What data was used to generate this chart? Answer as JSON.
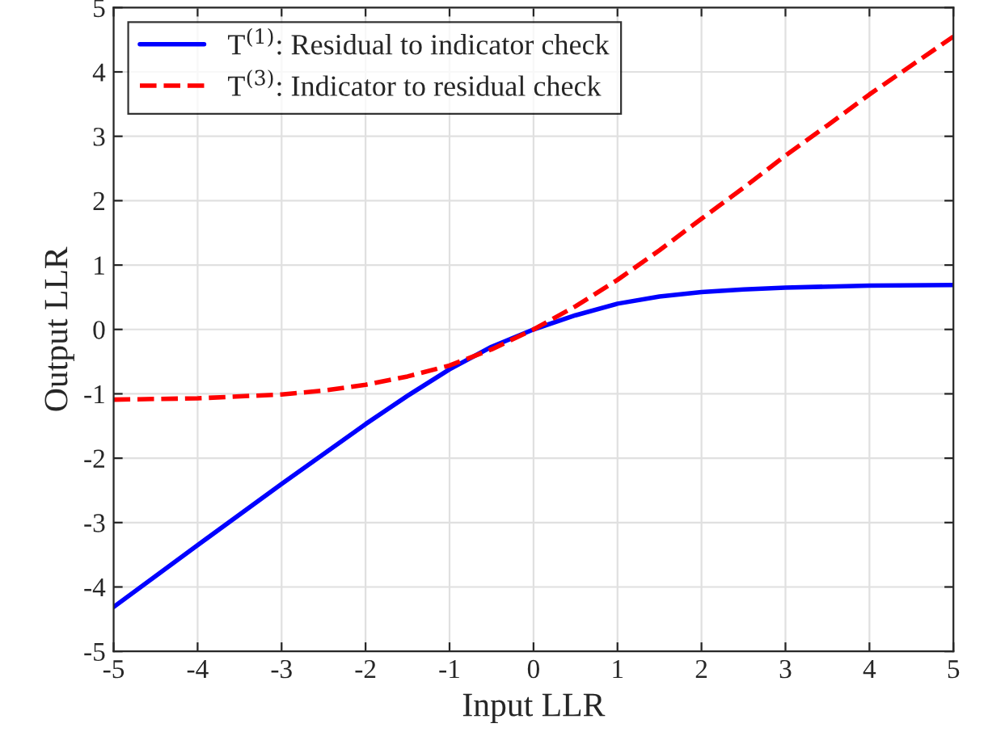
{
  "chart_data": {
    "type": "line",
    "xlabel": "Input LLR",
    "ylabel": "Output LLR",
    "series": [
      {
        "name": "T$^{(1)}$: Residual to indicator check",
        "color": "#0000ff",
        "line_style": "solid",
        "x": [
          -5,
          -4,
          -3,
          -2,
          -1.5,
          -1,
          -0.5,
          0,
          0.5,
          1,
          1.5,
          2,
          2.5,
          3,
          4,
          5
        ],
        "values": [
          -4.31,
          -3.35,
          -2.4,
          -1.47,
          -1.03,
          -0.62,
          -0.27,
          0,
          0.22,
          0.4,
          0.51,
          0.58,
          0.62,
          0.65,
          0.68,
          0.69
        ]
      },
      {
        "name": "T$^{(3)}$: Indicator to residual check",
        "color": "#ff0000",
        "line_style": "dashed",
        "x": [
          -5,
          -4,
          -3,
          -2.5,
          -2,
          -1.5,
          -1,
          -0.5,
          0,
          0.5,
          1,
          1.5,
          2,
          2.5,
          3,
          3.5,
          4,
          4.5,
          5
        ],
        "values": [
          -1.09,
          -1.07,
          -1.01,
          -0.95,
          -0.86,
          -0.73,
          -0.56,
          -0.31,
          0,
          0.36,
          0.77,
          1.23,
          1.72,
          2.2,
          2.7,
          3.17,
          3.65,
          4.1,
          4.55
        ]
      }
    ],
    "xlim": [
      -5,
      5
    ],
    "xticks": [
      -5,
      -4,
      -3,
      -2,
      -1,
      0,
      1,
      2,
      3,
      4,
      5
    ],
    "ylim": [
      -5,
      5
    ],
    "yticks": [
      -5,
      -4,
      -3,
      -2,
      -1,
      0,
      1,
      2,
      3,
      4,
      5
    ],
    "grid": true,
    "legend": "top left",
    "marker": "none"
  }
}
